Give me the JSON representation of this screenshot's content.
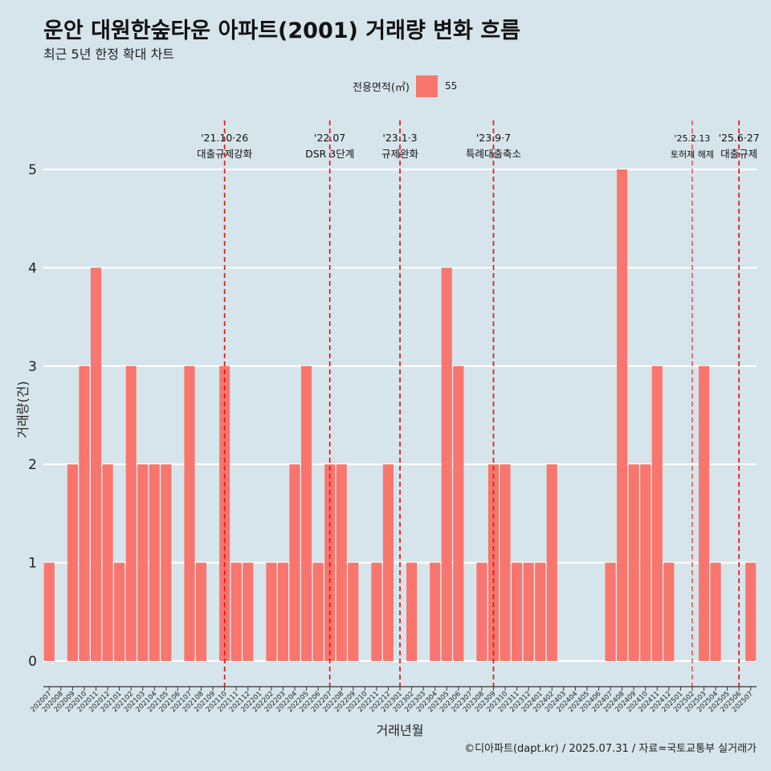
{
  "title": "운안 대원한숲타운 아파트(2001) 거래량 변화 흐름",
  "subtitle": "최근 5년 한정 확대 차트",
  "legend": {
    "title": "전용면적(㎡)",
    "label": "55",
    "color": "#f8766d"
  },
  "footer": "©디아파트(dapt.kr) / 2025.07.31 / 자료=국토교통부 실거래가",
  "chart_data": {
    "type": "bar",
    "xlabel": "거래년월",
    "ylabel": "거래량(건)",
    "ylim": [
      0,
      5
    ],
    "yticks": [
      0,
      1,
      2,
      3,
      4,
      5
    ],
    "grid": true,
    "legend_position": "top",
    "series": [
      {
        "name": "55",
        "color": "#f8766d",
        "values": [
          1,
          0,
          2,
          3,
          4,
          2,
          1,
          3,
          2,
          2,
          2,
          0,
          3,
          1,
          0,
          3,
          1,
          1,
          0,
          1,
          1,
          2,
          3,
          1,
          2,
          2,
          1,
          0,
          1,
          2,
          0,
          1,
          0,
          1,
          4,
          3,
          0,
          1,
          2,
          2,
          1,
          1,
          1,
          2,
          0,
          0,
          0,
          0,
          1,
          5,
          2,
          2,
          3,
          1,
          0,
          0,
          3,
          1,
          0,
          0,
          1
        ]
      }
    ],
    "categories": [
      "202007",
      "202008",
      "202009",
      "202010",
      "202011",
      "202012",
      "202101",
      "202102",
      "202103",
      "202104",
      "202105",
      "202106",
      "202107",
      "202108",
      "202109",
      "202110",
      "202111",
      "202112",
      "202201",
      "202202",
      "202203",
      "202204",
      "202205",
      "202206",
      "202207",
      "202208",
      "202209",
      "202210",
      "202211",
      "202212",
      "202301",
      "202302",
      "202303",
      "202304",
      "202305",
      "202306",
      "202307",
      "202308",
      "202309",
      "202310",
      "202311",
      "202312",
      "202401",
      "202402",
      "202403",
      "202404",
      "202405",
      "202406",
      "202407",
      "202408",
      "202409",
      "202410",
      "202411",
      "202412",
      "202501",
      "202502",
      "202503",
      "202504",
      "202505",
      "202506",
      "202507"
    ],
    "annotations": [
      {
        "at": "202110",
        "date": "'21.10·26",
        "text": "대출규제강화",
        "style": "dashed"
      },
      {
        "at": "202207",
        "date": "'22.07",
        "text": "DSR 3단계",
        "style": "dashed"
      },
      {
        "at": "202301",
        "date": "'23.1·3",
        "text": "규제완화",
        "style": "dashed"
      },
      {
        "at": "202309",
        "date": "'23.9·7",
        "text": "특례대출축소",
        "style": "dashed"
      },
      {
        "at": "202502",
        "date": "'25.2.13",
        "text": "토허제 해제",
        "style": "dashed-thin"
      },
      {
        "at": "202506",
        "date": "'25.6·27",
        "text": "대출규제",
        "style": "dashed"
      }
    ]
  }
}
